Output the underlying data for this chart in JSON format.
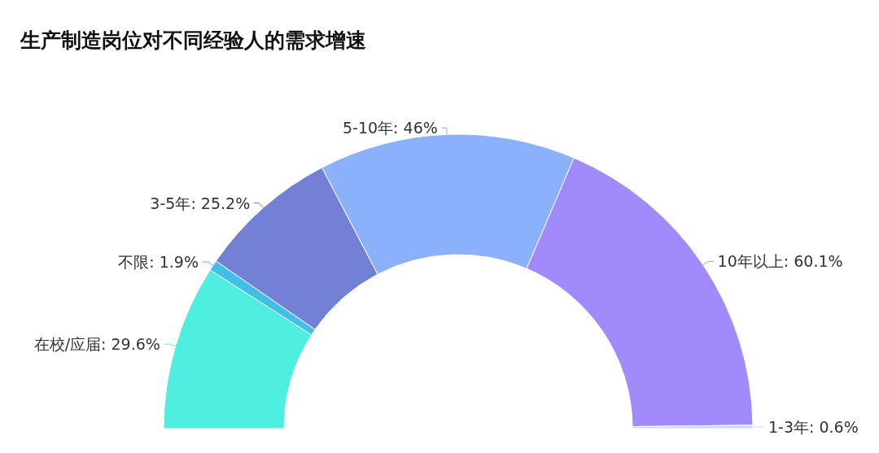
{
  "chart_data": {
    "type": "donut",
    "title": "生产制造岗位对不同经验人的需求增速",
    "categories": [
      "在校/应届",
      "不限",
      "3-5年",
      "5-10年",
      "10年以上",
      "1-3年"
    ],
    "values": [
      29.6,
      1.9,
      25.2,
      46,
      60.1,
      0.6
    ],
    "value_labels": [
      "29.6%",
      "1.9%",
      "25.2%",
      "46%",
      "60.1%",
      "0.6%"
    ],
    "colors": [
      "#4eeee0",
      "#41bfe8",
      "#7281d6",
      "#8bb0fc",
      "#a38afc",
      "#c8d8f4"
    ],
    "legend": false
  }
}
